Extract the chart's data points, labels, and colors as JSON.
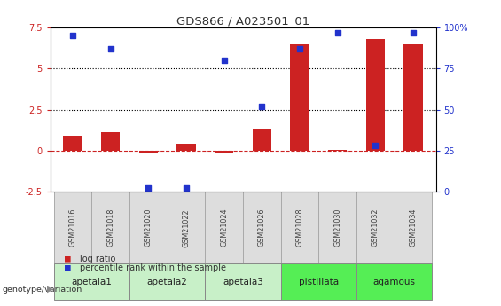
{
  "title": "GDS866 / A023501_01",
  "samples": [
    "GSM21016",
    "GSM21018",
    "GSM21020",
    "GSM21022",
    "GSM21024",
    "GSM21026",
    "GSM21028",
    "GSM21030",
    "GSM21032",
    "GSM21034"
  ],
  "log_ratio_10": [
    0.9,
    1.1,
    -0.15,
    0.4,
    -0.1,
    1.3,
    6.5,
    0.05,
    6.8,
    6.5
  ],
  "percentile_rank": [
    95,
    87,
    2,
    2,
    80,
    52,
    87,
    97,
    28,
    97
  ],
  "ylim_left": [
    -2.5,
    7.5
  ],
  "ylim_right": [
    0,
    100
  ],
  "yticks_left": [
    -2.5,
    0.0,
    2.5,
    5.0,
    7.5
  ],
  "yticks_right": [
    0,
    25,
    50,
    75,
    100
  ],
  "hlines": [
    2.5,
    5.0
  ],
  "groups": [
    {
      "label": "apetala1",
      "indices": [
        0,
        1
      ],
      "color": "#c8f0c8"
    },
    {
      "label": "apetala2",
      "indices": [
        2,
        3
      ],
      "color": "#c8f0c8"
    },
    {
      "label": "apetala3",
      "indices": [
        4,
        5
      ],
      "color": "#c8f0c8"
    },
    {
      "label": "pistillata",
      "indices": [
        6,
        7
      ],
      "color": "#55ee55"
    },
    {
      "label": "agamous",
      "indices": [
        8,
        9
      ],
      "color": "#55ee55"
    }
  ],
  "bar_color": "#cc2222",
  "dot_color": "#2233cc",
  "zero_line_color": "#cc2222",
  "left_axis_color": "#cc2222",
  "right_axis_color": "#2233cc",
  "sample_box_color": "#dddddd",
  "sample_box_edge": "#aaaaaa"
}
